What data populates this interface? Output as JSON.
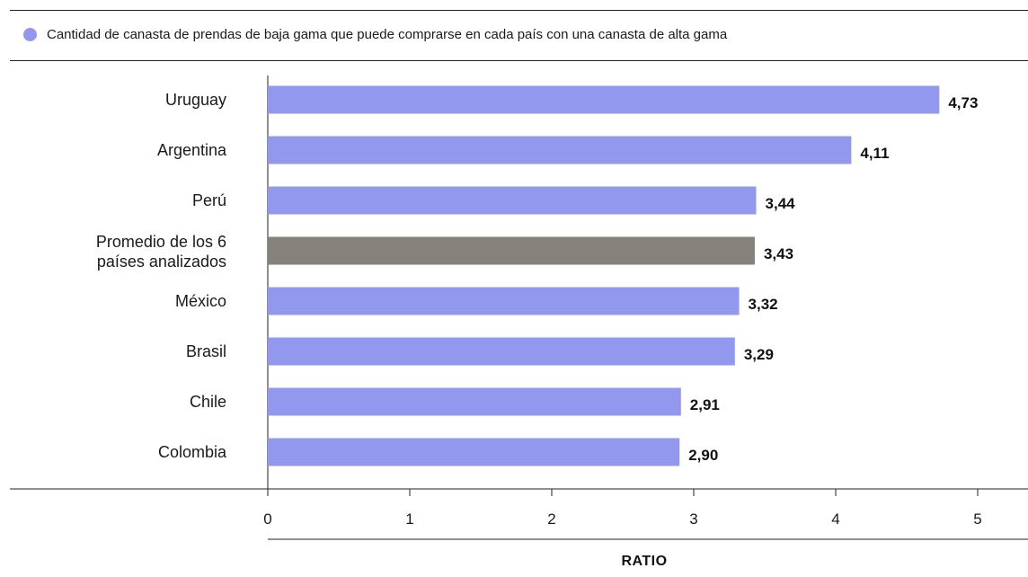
{
  "legend": {
    "label": "Cantidad de canasta de prendas de baja gama que puede comprarse en cada país con una canasta de alta gama",
    "color": "#9198ee"
  },
  "chart_data": {
    "type": "bar",
    "orientation": "horizontal",
    "categories": [
      "Uruguay",
      "Argentina",
      "Perú",
      "Promedio de los 6 países analizados",
      "México",
      "Brasil",
      "Chile",
      "Colombia"
    ],
    "values": [
      4.73,
      4.11,
      3.44,
      3.43,
      3.32,
      3.29,
      2.91,
      2.9
    ],
    "value_labels": [
      "4,73",
      "4,11",
      "3,44",
      "3,43",
      "3,32",
      "3,29",
      "2,91",
      "2,90"
    ],
    "bar_colors": [
      "#9198ee",
      "#9198ee",
      "#9198ee",
      "#85827b",
      "#9198ee",
      "#9198ee",
      "#9198ee",
      "#9198ee"
    ],
    "xlabel": "RATIO",
    "xlim": [
      0,
      5
    ],
    "xticks": [
      "0",
      "1",
      "2",
      "3",
      "4",
      "5"
    ],
    "grid": false
  }
}
